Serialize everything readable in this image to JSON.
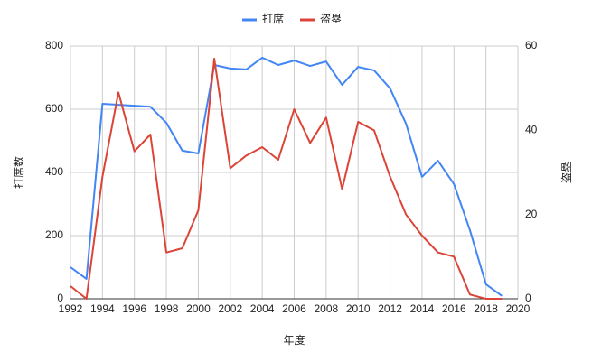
{
  "chart_data": {
    "type": "line",
    "x": [
      1992,
      1993,
      1994,
      1995,
      1996,
      1997,
      1998,
      1999,
      2000,
      2001,
      2002,
      2003,
      2004,
      2005,
      2006,
      2007,
      2008,
      2009,
      2010,
      2011,
      2012,
      2013,
      2014,
      2015,
      2016,
      2017,
      2018,
      2019
    ],
    "series": [
      {
        "name": "打席",
        "color": "#4285f4",
        "values": [
          100,
          63,
          617,
          614,
          611,
          608,
          557,
          469,
          460,
          740,
          729,
          726,
          763,
          740,
          754,
          737,
          751,
          677,
          734,
          723,
          666,
          554,
          386,
          437,
          363,
          217,
          46,
          9
        ]
      },
      {
        "name": "盗塁",
        "color": "#db4437",
        "axis": "y2",
        "values": [
          3,
          0,
          29,
          49,
          35,
          39,
          11,
          12,
          21,
          57,
          31,
          34,
          36,
          33,
          45,
          37,
          43,
          26,
          42,
          40,
          29,
          20,
          15,
          11,
          10,
          1,
          0,
          0
        ]
      }
    ],
    "xlabel": "年度",
    "ylabel": "打席数",
    "y2label": "盗塁",
    "xlim": [
      1992,
      2020
    ],
    "xticks": [
      1992,
      1994,
      1996,
      1998,
      2000,
      2002,
      2004,
      2006,
      2008,
      2010,
      2012,
      2014,
      2016,
      2018,
      2020
    ],
    "ylim": [
      0,
      800
    ],
    "yticks": [
      0,
      200,
      400,
      600,
      800
    ],
    "y2lim": [
      0,
      60
    ],
    "y2ticks": [
      0,
      20,
      40,
      60
    ],
    "grid": true,
    "legend": "top"
  }
}
